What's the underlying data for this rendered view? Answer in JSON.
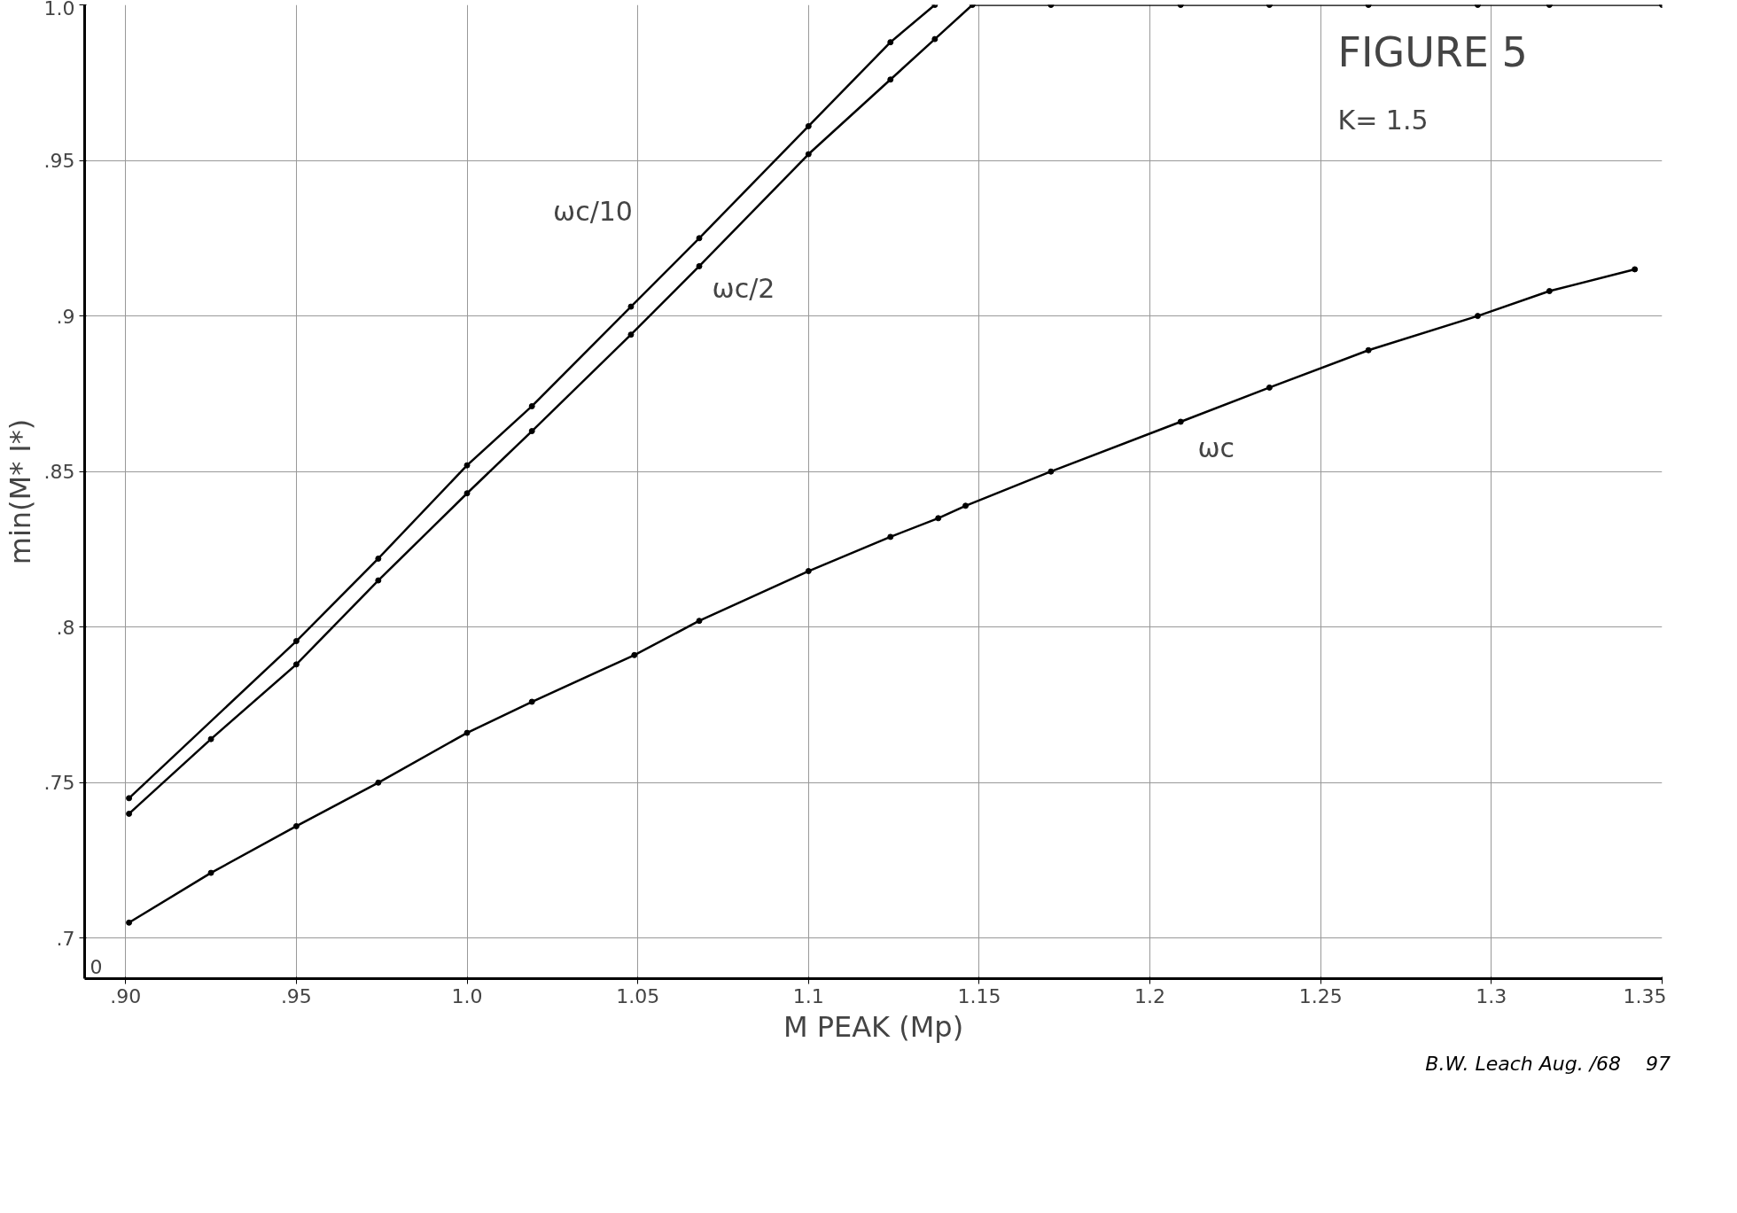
{
  "chart_data": {
    "type": "line",
    "title": "FIGURE 5",
    "subtitle": "K= 1.5",
    "xlabel": "M PEAK (Mp)",
    "ylabel": "min(M* I*)",
    "xlim": [
      0.888,
      1.35
    ],
    "ylim": [
      0.687,
      1.0
    ],
    "xticks": [
      {
        "value": 0.9,
        "label": ".90"
      },
      {
        "value": 0.95,
        "label": ".95"
      },
      {
        "value": 1.0,
        "label": "1.0"
      },
      1.05,
      1.1,
      1.15,
      1.2,
      1.25,
      1.3,
      1.35
    ],
    "yticks": [
      {
        "value": 0.7,
        "label": ".7"
      },
      {
        "value": 0.75,
        "label": ".75"
      },
      {
        "value": 0.8,
        "label": ".8"
      },
      {
        "value": 0.85,
        "label": ".85"
      },
      {
        "value": 0.9,
        "label": ".9"
      },
      {
        "value": 0.95,
        "label": ".95"
      },
      {
        "value": 1.0,
        "label": "1.0"
      }
    ],
    "grid": true,
    "marker": "circle",
    "line_style": "solid",
    "series": [
      {
        "color": "#000000",
        "x": [
          0.901,
          0.95,
          0.974,
          1.0,
          1.019,
          1.048,
          1.068,
          1.1,
          1.124,
          1.137
        ],
        "values": [
          0.745,
          0.7955,
          0.822,
          0.852,
          0.871,
          0.903,
          0.925,
          0.961,
          0.988,
          1.0
        ]
      },
      {
        "color": "#000000",
        "x": [
          0.901,
          0.925,
          0.95,
          0.974,
          1.0,
          1.019,
          1.048,
          1.068,
          1.1,
          1.124,
          1.137,
          1.148,
          1.171,
          1.209,
          1.235,
          1.264,
          1.296,
          1.317,
          1.35
        ],
        "values": [
          0.74,
          0.764,
          0.788,
          0.815,
          0.843,
          0.863,
          0.894,
          0.916,
          0.952,
          0.976,
          0.989,
          1.0,
          1.0,
          1.0,
          1.0,
          1.0,
          1.0,
          1.0,
          1.0
        ]
      },
      {
        "color": "#000000",
        "x": [
          0.901,
          0.925,
          0.95,
          0.974,
          1.0,
          1.019,
          1.049,
          1.068,
          1.1,
          1.124,
          1.138,
          1.146,
          1.171,
          1.209,
          1.235,
          1.264,
          1.296,
          1.317,
          1.342
        ],
        "values": [
          0.705,
          0.721,
          0.736,
          0.75,
          0.766,
          0.776,
          0.791,
          0.802,
          0.818,
          0.829,
          0.835,
          0.839,
          0.85,
          0.866,
          0.877,
          0.889,
          0.9,
          0.908,
          0.915
        ]
      }
    ],
    "annotations": [
      "ωc/10",
      "ωc/2",
      "ωc",
      "0",
      "B.W. Leach Aug. /68",
      "97"
    ]
  }
}
